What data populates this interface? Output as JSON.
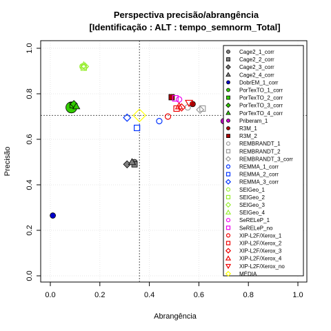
{
  "chart_data": {
    "type": "scatter",
    "title": "Perspectiva precisão/abrangência",
    "subtitle": "[Identificação : ALT : tempo_semnorm_Total]",
    "xlabel": "Abrangência",
    "ylabel": "Precisão",
    "xlim": [
      0,
      1
    ],
    "ylim": [
      0,
      1
    ],
    "xticks": [
      "0.0",
      "0.2",
      "0.4",
      "0.6",
      "0.8",
      "1.0"
    ],
    "yticks": [
      "0.0",
      "0.2",
      "0.4",
      "0.6",
      "0.8",
      "1.0"
    ],
    "grid": true,
    "legend_position": "right",
    "reference_lines": {
      "x": 0.36,
      "y": 0.705
    },
    "series": [
      {
        "name": "Cage2_1_corr",
        "color": "#808080",
        "shape": "circle",
        "filled": true,
        "x": 0.34,
        "y": 0.5
      },
      {
        "name": "Cage2_2_corr",
        "color": "#808080",
        "shape": "square",
        "filled": true,
        "x": 0.34,
        "y": 0.49
      },
      {
        "name": "Cage2_3_corr",
        "color": "#808080",
        "shape": "diamond",
        "filled": true,
        "x": 0.31,
        "y": 0.49
      },
      {
        "name": "Cage2_4_corr",
        "color": "#808080",
        "shape": "triangle",
        "filled": true,
        "x": 0.33,
        "y": 0.5
      },
      {
        "name": "DobrEM_1_corr",
        "color": "#0000cc",
        "shape": "circle",
        "filled": true,
        "x": 0.01,
        "y": 0.265
      },
      {
        "name": "PorTexTO_1_corr",
        "color": "#33cc00",
        "shape": "circle",
        "filled": true,
        "x": 0.085,
        "y": 0.74
      },
      {
        "name": "PorTexTO_2_corr",
        "color": "#33cc00",
        "shape": "square",
        "filled": true,
        "x": 0.09,
        "y": 0.75
      },
      {
        "name": "PorTexTO_3_corr",
        "color": "#33cc00",
        "shape": "diamond",
        "filled": true,
        "x": 0.095,
        "y": 0.755
      },
      {
        "name": "PorTexTO_4_corr",
        "color": "#33cc00",
        "shape": "triangle",
        "filled": true,
        "x": 0.105,
        "y": 0.745
      },
      {
        "name": "Priberam_1",
        "color": "#cc00cc",
        "shape": "circle",
        "filled": true,
        "x": 0.7,
        "y": 0.68
      },
      {
        "name": "R3M_1",
        "color": "#aa0000",
        "shape": "circle",
        "filled": true,
        "x": 0.575,
        "y": 0.755
      },
      {
        "name": "R3M_2",
        "color": "#aa0000",
        "shape": "square",
        "filled": true,
        "x": 0.49,
        "y": 0.785
      },
      {
        "name": "REMBRANDT_1",
        "color": "#999999",
        "shape": "circle",
        "filled": false,
        "x": 0.555,
        "y": 0.74
      },
      {
        "name": "REMBRANDT_2",
        "color": "#999999",
        "shape": "square",
        "filled": false,
        "x": 0.615,
        "y": 0.735
      },
      {
        "name": "REMBRANDT_3_corr",
        "color": "#999999",
        "shape": "diamond",
        "filled": false,
        "x": 0.605,
        "y": 0.73
      },
      {
        "name": "REMMA_1_corr",
        "color": "#0033ff",
        "shape": "circle",
        "filled": false,
        "x": 0.44,
        "y": 0.68
      },
      {
        "name": "REMMA_2_corr",
        "color": "#0033ff",
        "shape": "square",
        "filled": false,
        "x": 0.35,
        "y": 0.65
      },
      {
        "name": "REMMA_3_corr",
        "color": "#0033ff",
        "shape": "diamond",
        "filled": false,
        "x": 0.31,
        "y": 0.695
      },
      {
        "name": "SEIGeo_1",
        "color": "#99ee33",
        "shape": "circle",
        "filled": false,
        "x": 0.13,
        "y": 0.92
      },
      {
        "name": "SEIGeo_2",
        "color": "#99ee33",
        "shape": "square",
        "filled": false,
        "x": 0.135,
        "y": 0.915
      },
      {
        "name": "SEIGeo_3",
        "color": "#99ee33",
        "shape": "diamond",
        "filled": false,
        "x": 0.14,
        "y": 0.92
      },
      {
        "name": "SEIGeo_4",
        "color": "#99ee33",
        "shape": "triangle",
        "filled": false,
        "x": 0.135,
        "y": 0.925
      },
      {
        "name": "SeRELeP_1",
        "color": "#ee00ee",
        "shape": "circle",
        "filled": false,
        "x": 0.52,
        "y": 0.775
      },
      {
        "name": "SeRELeP_no",
        "color": "#ee00ee",
        "shape": "square",
        "filled": false,
        "x": 0.505,
        "y": 0.78
      },
      {
        "name": "XIP-L2F/Xerox_1",
        "color": "#ee0000",
        "shape": "circle",
        "filled": false,
        "x": 0.475,
        "y": 0.7
      },
      {
        "name": "XIP-L2F/Xerox_2",
        "color": "#ee0000",
        "shape": "square",
        "filled": false,
        "x": 0.51,
        "y": 0.735
      },
      {
        "name": "XIP-L2F/Xerox_3",
        "color": "#ee0000",
        "shape": "diamond",
        "filled": false,
        "x": 0.53,
        "y": 0.74
      },
      {
        "name": "XIP-L2F/Xerox_4",
        "color": "#ee0000",
        "shape": "triangle",
        "filled": false,
        "x": 0.52,
        "y": 0.745
      },
      {
        "name": "XIP-L2F/Xerox_no",
        "color": "#ee0000",
        "shape": "triangle-down",
        "filled": false,
        "x": 0.56,
        "y": 0.76
      },
      {
        "name": "MÉDIA",
        "color": "#ffff00",
        "shape": "diamond",
        "filled": false,
        "x": 0.36,
        "y": 0.705
      }
    ]
  }
}
